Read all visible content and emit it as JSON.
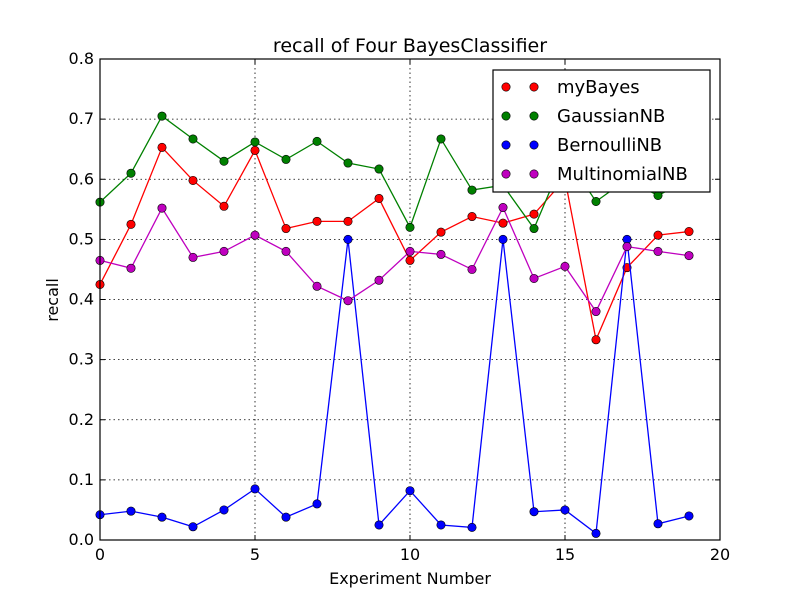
{
  "chart_data": {
    "type": "line",
    "title": "recall of Four BayesClassifier",
    "xlabel": "Experiment Number",
    "ylabel": "recall",
    "xlim": [
      0,
      20
    ],
    "ylim": [
      0.0,
      0.8
    ],
    "xticks": [
      0,
      5,
      10,
      15,
      20
    ],
    "yticks": [
      0.0,
      0.1,
      0.2,
      0.3,
      0.4,
      0.5,
      0.6,
      0.7,
      0.8
    ],
    "xtick_labels": [
      "0",
      "5",
      "10",
      "15",
      "20"
    ],
    "ytick_labels": [
      "0.0",
      "0.1",
      "0.2",
      "0.3",
      "0.4",
      "0.5",
      "0.6",
      "0.7",
      "0.8"
    ],
    "grid": true,
    "legend_position": "top-right",
    "x": [
      0,
      1,
      2,
      3,
      4,
      5,
      6,
      7,
      8,
      9,
      10,
      11,
      12,
      13,
      14,
      15,
      16,
      17,
      18,
      19
    ],
    "series": [
      {
        "name": "myBayes",
        "color": "#ff0000",
        "values": [
          0.425,
          0.525,
          0.653,
          0.598,
          0.555,
          0.648,
          0.518,
          0.53,
          0.53,
          0.568,
          0.465,
          0.512,
          0.538,
          0.527,
          0.542,
          0.6,
          0.333,
          0.453,
          0.507,
          0.513
        ]
      },
      {
        "name": "GaussianNB",
        "color": "#008000",
        "values": [
          0.562,
          0.61,
          0.705,
          0.667,
          0.63,
          0.662,
          0.633,
          0.663,
          0.627,
          0.617,
          0.52,
          0.667,
          0.582,
          0.59,
          0.518,
          0.64,
          0.563,
          0.6,
          0.573,
          0.6
        ]
      },
      {
        "name": "BernoulliNB",
        "color": "#0000ff",
        "values": [
          0.042,
          0.048,
          0.038,
          0.022,
          0.05,
          0.085,
          0.038,
          0.06,
          0.5,
          0.025,
          0.082,
          0.025,
          0.021,
          0.5,
          0.047,
          0.05,
          0.011,
          0.5,
          0.027,
          0.04
        ]
      },
      {
        "name": "MultinomialNB",
        "color": "#bf00bf",
        "values": [
          0.465,
          0.452,
          0.552,
          0.47,
          0.48,
          0.507,
          0.48,
          0.422,
          0.398,
          0.432,
          0.48,
          0.475,
          0.45,
          0.553,
          0.435,
          0.455,
          0.38,
          0.488,
          0.48,
          0.473
        ]
      }
    ]
  }
}
